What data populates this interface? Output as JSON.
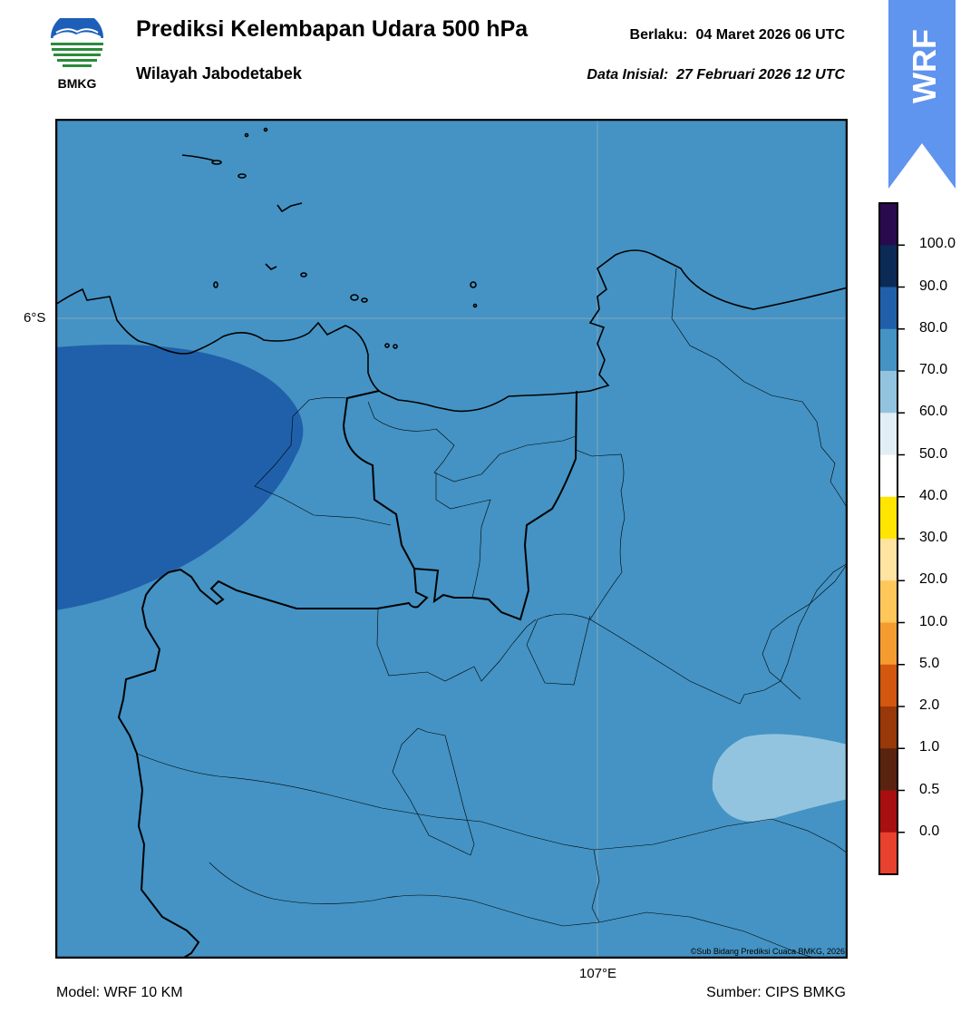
{
  "header": {
    "logo_text": "BMKG",
    "title": "Prediksi Kelembapan Udara 500 hPa",
    "subtitle": "Wilayah Jabodetabek",
    "valid_label": "Berlaku:",
    "valid_value": "04 Maret 2026 06 UTC",
    "init_label": "Data Inisial:",
    "init_value": "27 Februari 2026 12 UTC",
    "badge_text": "WRF"
  },
  "map": {
    "lat_label": "6°S",
    "lon_label": "107°E",
    "copyright": "©Sub Bidang Prediksi Cuaca BMKG, 2026",
    "base_fill_color": "#4493c4",
    "high_fill_color": "#2060aa",
    "low_fill_color": "#93c4df"
  },
  "legend": {
    "tick_labels": [
      "100.0",
      "90.0",
      "80.0",
      "70.0",
      "60.0",
      "50.0",
      "40.0",
      "30.0",
      "20.0",
      "10.0",
      "5.0",
      "2.0",
      "1.0",
      "0.5",
      "0.0"
    ],
    "colors": [
      "#2a0a4f",
      "#0b2a55",
      "#2060aa",
      "#4493c4",
      "#93c4df",
      "#e2eef6",
      "#ffffff",
      "#ffe500",
      "#ffe3a1",
      "#ffc65a",
      "#f59c30",
      "#d2570f",
      "#993808",
      "#5a230f",
      "#a80f10",
      "#e8412e"
    ]
  },
  "footer": {
    "model": "Model: WRF 10 KM",
    "source": "Sumber: CIPS BMKG"
  }
}
